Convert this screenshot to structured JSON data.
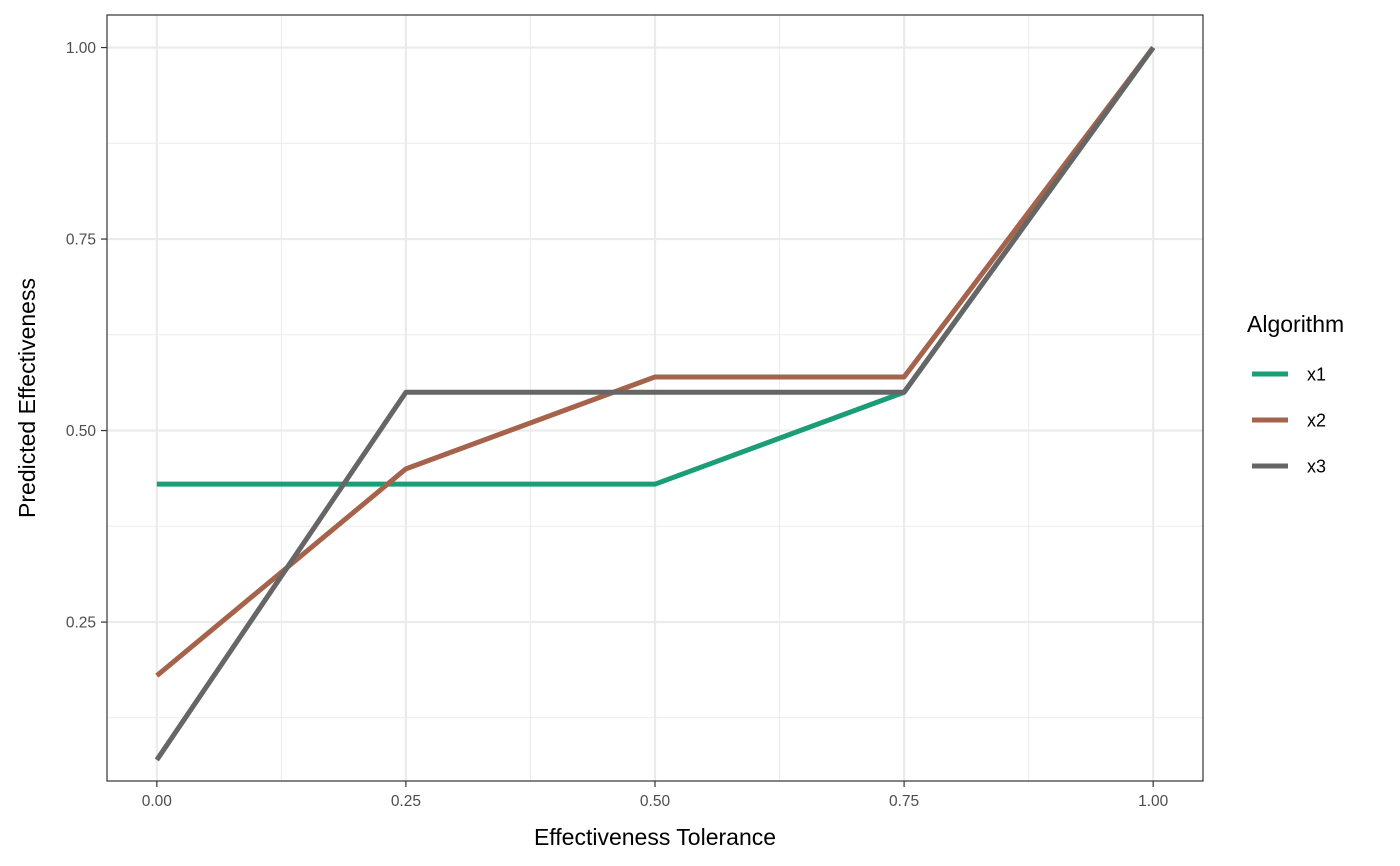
{
  "chart_data": {
    "type": "line",
    "title": "",
    "xlabel": "Effectiveness Tolerance",
    "ylabel": "Predicted Effectiveness",
    "xlim": [
      -0.05,
      1.05
    ],
    "ylim": [
      0.0425,
      1.0425
    ],
    "x_ticks": [
      0,
      0.25,
      0.5,
      0.75,
      1
    ],
    "x_tick_labels": [
      "0.00",
      "0.25",
      "0.50",
      "0.75",
      "1.00"
    ],
    "y_ticks": [
      0.25,
      0.5,
      0.75,
      1
    ],
    "y_tick_labels": [
      "0.25",
      "0.50",
      "0.75",
      "1.00"
    ],
    "x_minor": [
      0.125,
      0.375,
      0.625,
      0.875
    ],
    "y_minor": [
      0.125,
      0.375,
      0.625,
      0.875
    ],
    "grid": true,
    "legend": {
      "title": "Algorithm",
      "position": "right"
    },
    "x": [
      0,
      0.25,
      0.5,
      0.75,
      1
    ],
    "series": [
      {
        "name": "x1",
        "color": "#1b9e77",
        "values": [
          0.43,
          0.43,
          0.43,
          0.55,
          1.0
        ]
      },
      {
        "name": "x2",
        "color": "#a6634c",
        "values": [
          0.18,
          0.45,
          0.57,
          0.57,
          1.0
        ]
      },
      {
        "name": "x3",
        "color": "#666666",
        "values": [
          0.07,
          0.55,
          0.55,
          0.55,
          1.0
        ]
      }
    ]
  }
}
